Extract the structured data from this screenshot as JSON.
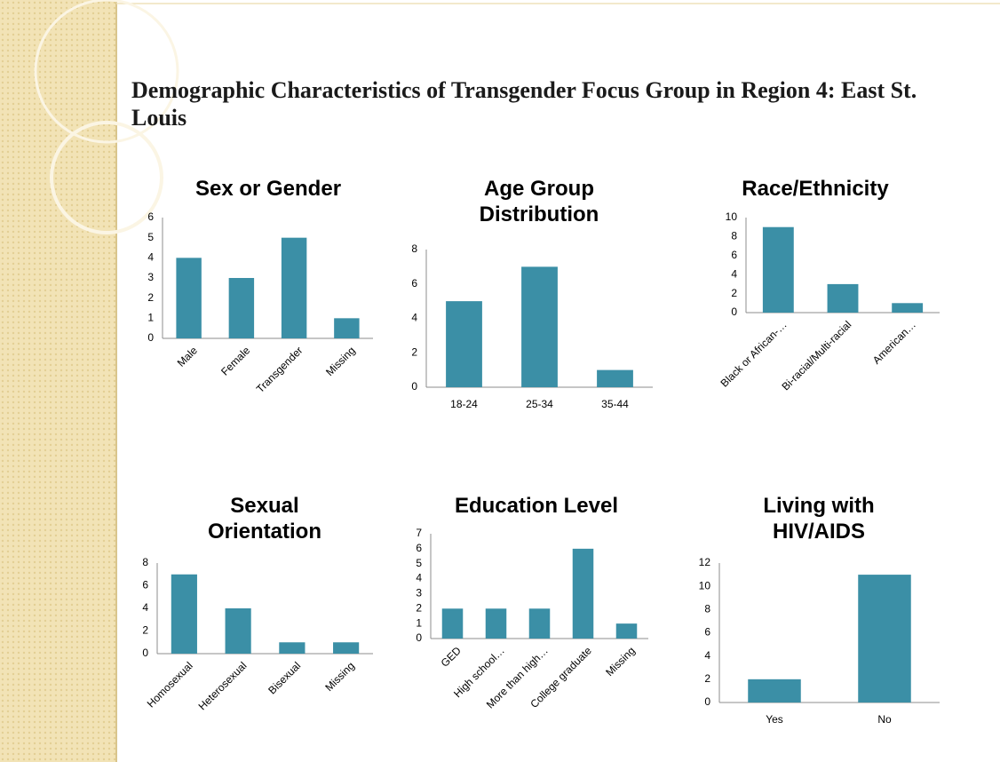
{
  "title": "Demographic Characteristics of Transgender Focus Group in Region 4: East St. Louis",
  "chart_data": [
    {
      "type": "bar",
      "title": "Sex or Gender",
      "categories": [
        "Male",
        "Female",
        "Transgender",
        "Missing"
      ],
      "values": [
        4,
        3,
        5,
        1
      ],
      "color": "#3b8fa6",
      "ylim": [
        0,
        6
      ],
      "yticks": [
        0,
        1,
        2,
        3,
        4,
        5,
        6
      ]
    },
    {
      "type": "bar",
      "title": "Age Group Distribution",
      "categories": [
        "18-24",
        "25-34",
        "35-44"
      ],
      "values": [
        5,
        7,
        1
      ],
      "color": "#3b8fa6",
      "ylim": [
        0,
        8
      ],
      "yticks": [
        0,
        2,
        4,
        6,
        8
      ]
    },
    {
      "type": "bar",
      "title": "Race/Ethnicity",
      "categories": [
        "Black or African-…",
        "Bi-racial/Multi-racial",
        "American…"
      ],
      "values": [
        9,
        3,
        1
      ],
      "color": "#3b8fa6",
      "ylim": [
        0,
        10
      ],
      "yticks": [
        0,
        2,
        4,
        6,
        8,
        10
      ]
    },
    {
      "type": "bar",
      "title": "Sexual Orientation",
      "categories": [
        "Homosexual",
        "Heterosexual",
        "Bisexual",
        "Missing"
      ],
      "values": [
        7,
        4,
        1,
        1
      ],
      "color": "#3b8fa6",
      "ylim": [
        0,
        8
      ],
      "yticks": [
        0,
        2,
        4,
        6,
        8
      ]
    },
    {
      "type": "bar",
      "title": "Education Level",
      "categories": [
        "GED",
        "High school…",
        "More than high…",
        "College graduate",
        "Missing"
      ],
      "values": [
        2,
        2,
        2,
        6,
        1
      ],
      "color": "#3b8fa6",
      "ylim": [
        0,
        7
      ],
      "yticks": [
        0,
        1,
        2,
        3,
        4,
        5,
        6,
        7
      ]
    },
    {
      "type": "bar",
      "title": "Living with HIV/AIDS",
      "categories": [
        "Yes",
        "No"
      ],
      "values": [
        2,
        11
      ],
      "color": "#3b8fa6",
      "ylim": [
        0,
        12
      ],
      "yticks": [
        0,
        2,
        4,
        6,
        8,
        10,
        12
      ]
    }
  ]
}
